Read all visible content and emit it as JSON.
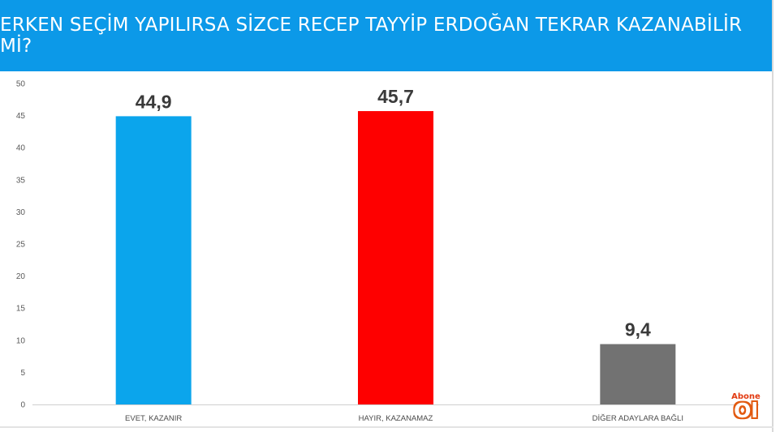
{
  "header": {
    "title": "ERKEN SEÇİM YAPILIRSA SİZCE RECEP TAYYİP ERDOĞAN TEKRAR KAZANABİLİR Mİ?"
  },
  "chart_data": {
    "type": "bar",
    "categories": [
      "EVET, KAZANIR",
      "HAYIR, KAZANAMAZ",
      "DİĞER ADAYLARA BAĞLI"
    ],
    "values": [
      44.9,
      45.7,
      9.4
    ],
    "value_labels": [
      "44,9",
      "45,7",
      "9,4"
    ],
    "colors": [
      "#0ba5ec",
      "#fe0000",
      "#727272"
    ],
    "yticks": [
      "0",
      "5",
      "10",
      "15",
      "20",
      "25",
      "30",
      "35",
      "40",
      "45",
      "50"
    ],
    "ylim": [
      0,
      50
    ],
    "grid": false,
    "legend": "none"
  },
  "badge": {
    "top": "Abone",
    "main": "Ol"
  }
}
